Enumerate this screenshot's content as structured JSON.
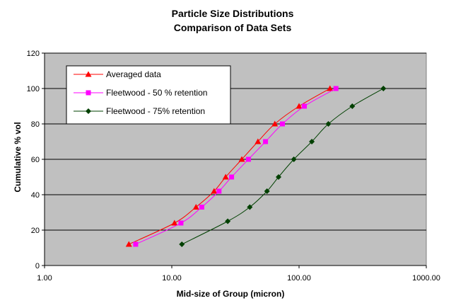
{
  "chart_data": {
    "type": "line",
    "title": "Particle Size Distributions",
    "subtitle": "Comparison of Data Sets",
    "xlabel": "Mid-size of Group (micron)",
    "ylabel": "Cumulative % vol",
    "x_scale": "log",
    "xlim": [
      1,
      1000
    ],
    "ylim": [
      0,
      120
    ],
    "x_ticks": [
      "1.00",
      "10.00",
      "100.00",
      "1000.00"
    ],
    "y_ticks": [
      "0",
      "20",
      "40",
      "60",
      "80",
      "100",
      "120"
    ],
    "grid": "horizontal",
    "legend_position": "top-left",
    "plot_background": "#c0c0c0",
    "series": [
      {
        "name": "Averaged data",
        "color": "#ff0000",
        "marker": "triangle",
        "x": [
          4.6,
          10.5,
          15.5,
          21.5,
          26.5,
          35.5,
          47.5,
          64.5,
          100,
          175
        ],
        "y": [
          12,
          24,
          33,
          42,
          50,
          60,
          70,
          80,
          90,
          100
        ]
      },
      {
        "name": "Fleetwood - 50 % retention",
        "color": "#ff00ff",
        "marker": "square",
        "x": [
          5.2,
          11.8,
          17.2,
          23.5,
          29.5,
          40,
          54.5,
          74,
          110,
          195
        ],
        "y": [
          12,
          24,
          33,
          42,
          50,
          60,
          70,
          80,
          90,
          100
        ]
      },
      {
        "name": "Fleetwood - 75% retention",
        "color": "#004000",
        "marker": "diamond",
        "x": [
          12,
          27.5,
          41,
          56,
          69,
          91,
          126,
          170,
          262,
          460
        ],
        "y": [
          12,
          25,
          33,
          42,
          50,
          60,
          70,
          80,
          90,
          100
        ]
      }
    ]
  }
}
